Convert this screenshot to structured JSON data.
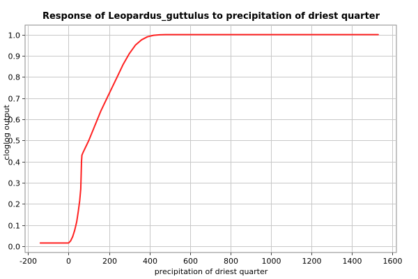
{
  "chart_data": {
    "type": "line",
    "title": "Response of Leopardus_guttulus to precipitation of driest quarter",
    "xlabel": "precipitation of driest quarter",
    "ylabel": "cloglog output",
    "xlim": [
      -215,
      1620
    ],
    "ylim": [
      -0.03,
      1.045
    ],
    "xticks": [
      -200,
      0,
      200,
      400,
      600,
      800,
      1000,
      1200,
      1400,
      1600
    ],
    "yticks": [
      0.0,
      0.1,
      0.2,
      0.3,
      0.4,
      0.5,
      0.6,
      0.7,
      0.8,
      0.9,
      1.0
    ],
    "grid": true,
    "legend": "none",
    "series": [
      {
        "color": "#ff2020",
        "x": [
          -140,
          -100,
          -50,
          0,
          10,
          20,
          30,
          40,
          48,
          55,
          60,
          62,
          64,
          66,
          70,
          80,
          100,
          130,
          160,
          200,
          240,
          270,
          300,
          330,
          360,
          390,
          420,
          450,
          480,
          600,
          800,
          1000,
          1200,
          1400,
          1530
        ],
        "y": [
          0.015,
          0.015,
          0.015,
          0.015,
          0.025,
          0.045,
          0.075,
          0.115,
          0.165,
          0.215,
          0.27,
          0.34,
          0.4,
          0.43,
          0.44,
          0.46,
          0.5,
          0.57,
          0.64,
          0.72,
          0.8,
          0.86,
          0.91,
          0.95,
          0.975,
          0.99,
          0.997,
          0.999,
          1.0,
          1.0,
          1.0,
          1.0,
          1.0,
          1.0,
          1.0
        ]
      }
    ]
  }
}
